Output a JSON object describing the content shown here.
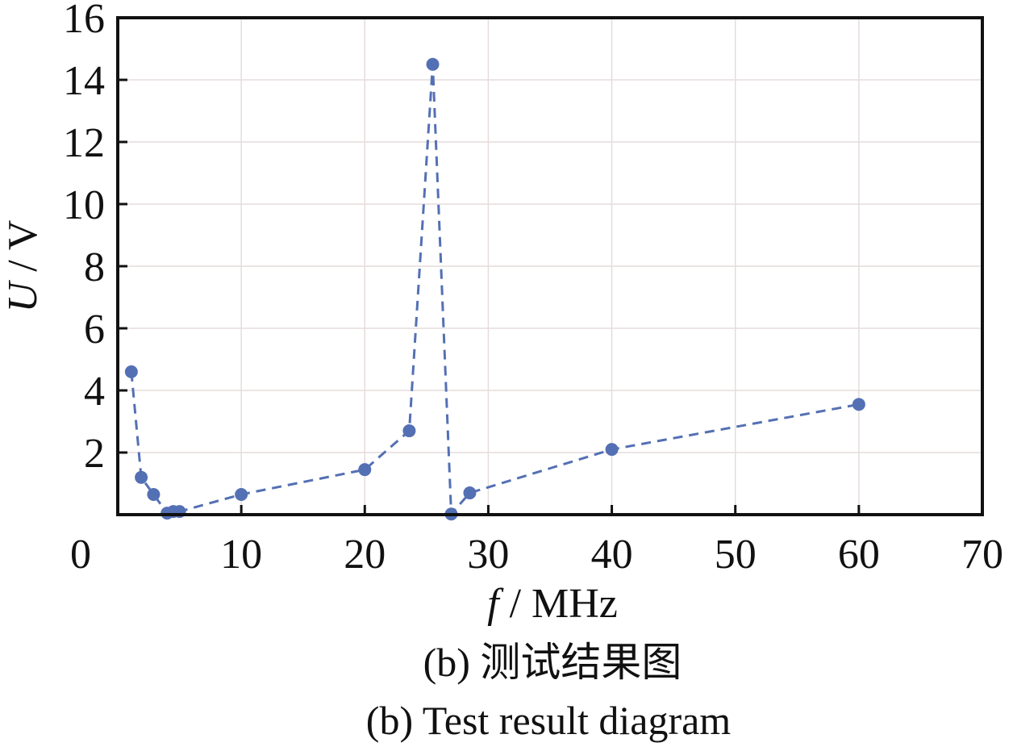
{
  "chart_data": {
    "type": "line",
    "title": "",
    "xlabel_var": "f",
    "xlabel_unit": " / MHz",
    "ylabel_var": "U",
    "ylabel_unit": " / V",
    "xlim": [
      0,
      70
    ],
    "ylim": [
      0,
      16
    ],
    "xticks": [
      0,
      10,
      20,
      30,
      40,
      50,
      60,
      70
    ],
    "yticks": [
      2,
      4,
      6,
      8,
      10,
      12,
      14,
      16
    ],
    "grid": true,
    "series": [
      {
        "name": "U",
        "color": "#5470b4",
        "style": "dashed-with-markers",
        "x": [
          1.1,
          1.9,
          2.9,
          4.0,
          4.5,
          5.0,
          10,
          20,
          23.6,
          25.5,
          27.0,
          28.5,
          40,
          60
        ],
        "y": [
          4.6,
          1.2,
          0.65,
          0.05,
          0.1,
          0.1,
          0.65,
          1.45,
          2.7,
          14.5,
          0.02,
          0.7,
          2.1,
          3.55
        ]
      }
    ]
  },
  "caption": {
    "zh": "(b)  测试结果图",
    "en": "(b)  Test result diagram"
  }
}
